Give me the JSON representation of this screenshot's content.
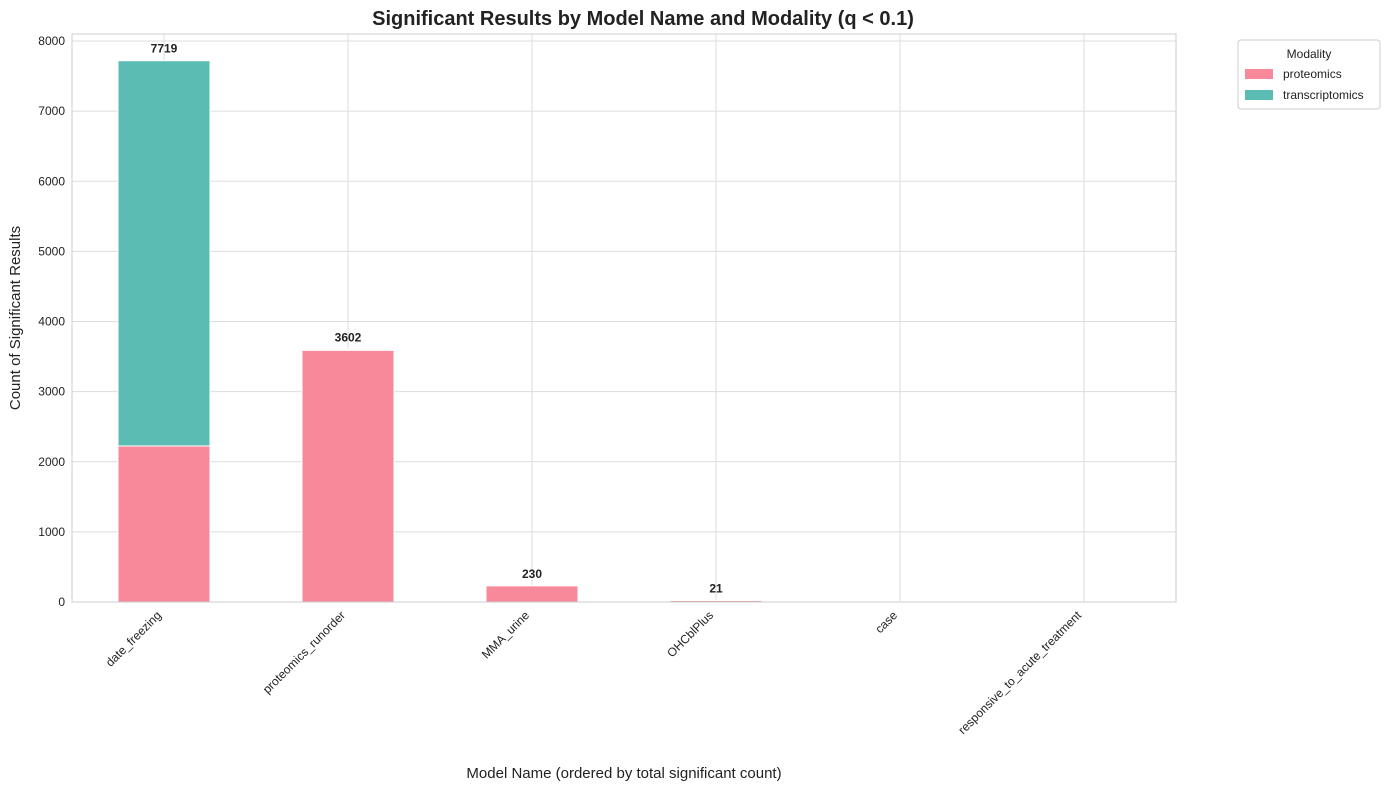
{
  "chart_data": {
    "type": "bar",
    "stacked": true,
    "title": "Significant Results by Model Name and Modality (q < 0.1)",
    "xlabel": "Model Name (ordered by total significant count)",
    "ylabel": "Count of Significant Results",
    "categories": [
      "date_freezing",
      "proteomics_runorder",
      "MMA_urine",
      "OHCblPlus",
      "case",
      "responsive_to_acute_treatment"
    ],
    "series": [
      {
        "name": "proteomics",
        "color": "#f7899a",
        "values": [
          2225,
          3590,
          230,
          21,
          4,
          2
        ]
      },
      {
        "name": "transcriptomics",
        "color": "#5bbcb3",
        "values": [
          5494,
          12,
          0,
          0,
          0,
          0
        ]
      }
    ],
    "totals_labels": [
      "7719",
      "3602",
      "230",
      "21",
      "",
      ""
    ],
    "ylim": [
      0,
      8100
    ],
    "yticks": [
      0,
      1000,
      2000,
      3000,
      4000,
      5000,
      6000,
      7000,
      8000
    ],
    "grid": true,
    "legend": {
      "title": "Modality",
      "placement": "outside-top-right"
    }
  }
}
